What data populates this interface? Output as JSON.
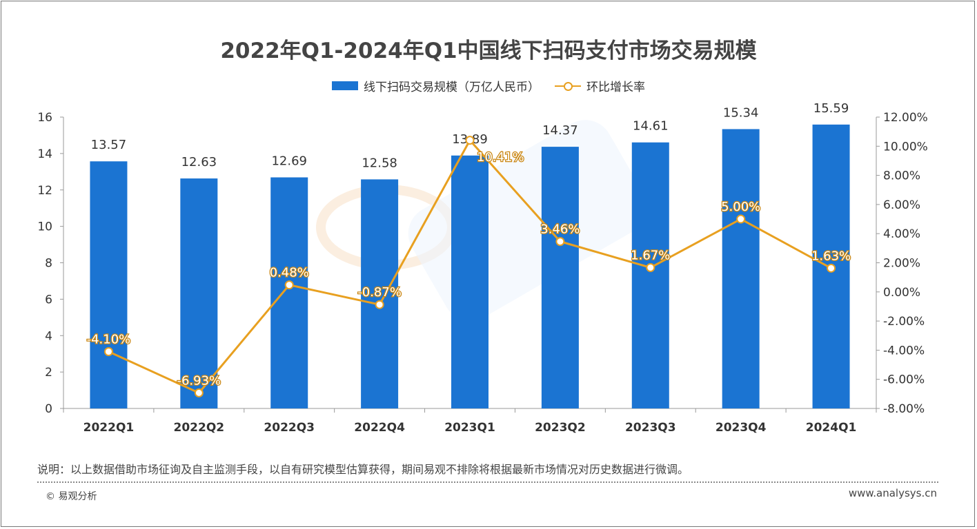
{
  "chart_data": {
    "type": "bar",
    "title": "2022年Q1-2024年Q1中国线下扫码支付市场交易规模",
    "categories": [
      "2022Q1",
      "2022Q2",
      "2022Q3",
      "2022Q4",
      "2023Q1",
      "2023Q2",
      "2023Q3",
      "2023Q4",
      "2024Q1"
    ],
    "series": [
      {
        "name": "线下扫码交易规模（万亿人民币）",
        "type": "bar",
        "axis": "left",
        "color": "#1b74d2",
        "values": [
          13.57,
          12.63,
          12.69,
          12.58,
          13.89,
          14.37,
          14.61,
          15.34,
          15.59
        ],
        "labels": [
          "13.57",
          "12.63",
          "12.69",
          "12.58",
          "13.89",
          "14.37",
          "14.61",
          "15.34",
          "15.59"
        ]
      },
      {
        "name": "环比增长率",
        "type": "line",
        "axis": "right",
        "color": "#e8a020",
        "values": [
          -4.1,
          -6.93,
          0.48,
          -0.87,
          10.41,
          3.46,
          1.67,
          5.0,
          1.63
        ],
        "labels": [
          "-4.10%",
          "-6.93%",
          "0.48%",
          "-0.87%",
          "10.41%",
          "3.46%",
          "1.67%",
          "5.00%",
          "1.63%"
        ]
      }
    ],
    "ylim": [
      0,
      16
    ],
    "yticks": [
      "0",
      "2",
      "4",
      "6",
      "8",
      "10",
      "12",
      "14",
      "16"
    ],
    "y2lim": [
      -8,
      12
    ],
    "y2ticks": [
      "-8.00%",
      "-6.00%",
      "-4.00%",
      "-2.00%",
      "0.00%",
      "2.00%",
      "4.00%",
      "6.00%",
      "8.00%",
      "10.00%",
      "12.00%"
    ],
    "legend": "top-center",
    "grid": false
  },
  "watermark": "analysys 易观分析",
  "footer": {
    "note": "说明：以上数据借助市场征询及自主监测手段，以自有研究模型估算获得，期间易观不排除将根据最新市场情况对历史数据进行微调。",
    "copyright": "© 易观分析",
    "url": "www.analysys.cn"
  }
}
